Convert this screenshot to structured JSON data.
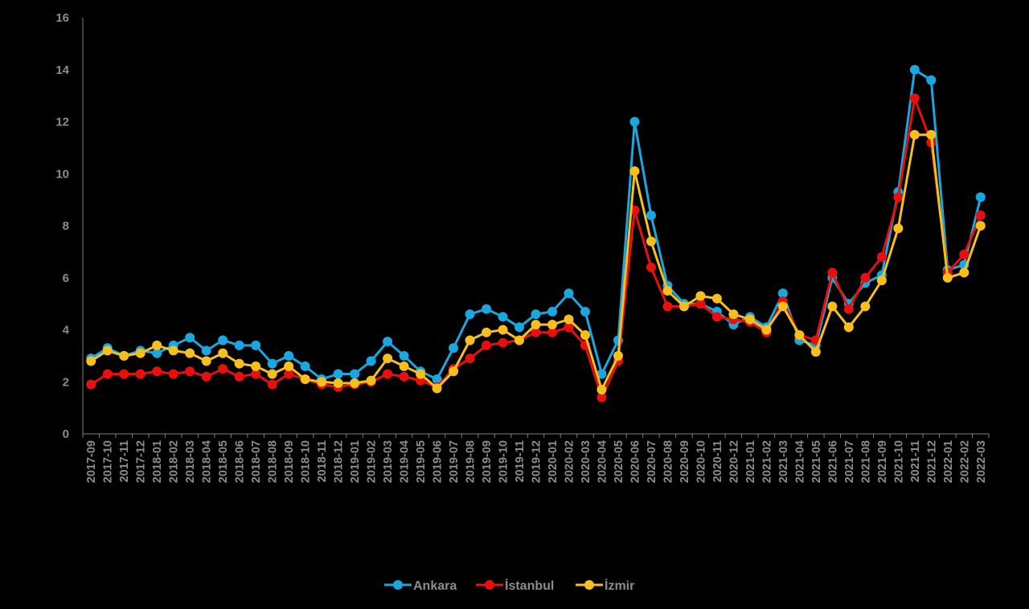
{
  "chart_data": {
    "type": "line",
    "title": "",
    "xlabel": "",
    "ylabel": "",
    "ylim": [
      0,
      16
    ],
    "yticks": [
      0,
      2,
      4,
      6,
      8,
      10,
      12,
      14,
      16
    ],
    "grid": false,
    "legend_position": "bottom-center",
    "x": [
      "2017-09",
      "2017-10",
      "2017-11",
      "2017-12",
      "2018-01",
      "2018-02",
      "2018-03",
      "2018-04",
      "2018-05",
      "2018-06",
      "2018-07",
      "2018-08",
      "2018-09",
      "2018-10",
      "2018-11",
      "2018-12",
      "2019-01",
      "2019-02",
      "2019-03",
      "2019-04",
      "2019-05",
      "2019-06",
      "2019-07",
      "2019-08",
      "2019-09",
      "2019-10",
      "2019-11",
      "2019-12",
      "2020-01",
      "2020-02",
      "2020-03",
      "2020-04",
      "2020-05",
      "2020-06",
      "2020-07",
      "2020-08",
      "2020-09",
      "2020-10",
      "2020-11",
      "2020-12",
      "2021-01",
      "2021-02",
      "2021-03",
      "2021-04",
      "2021-05",
      "2021-06",
      "2021-07",
      "2021-08",
      "2021-09",
      "2021-10",
      "2021-11",
      "2021-12",
      "2022-01",
      "2022-02",
      "2022-03"
    ],
    "x_tick_labels": [
      "2017-09",
      "2017-10",
      "2017-11",
      "2017-12",
      "2018-01",
      "2018-02",
      "2018-03",
      "2018-04",
      "2018-05",
      "2018-06",
      "2018-07",
      "2018-08",
      "2018-09",
      "2018-10",
      "2018-11",
      "2018-12",
      "2019-01",
      "2019-02",
      "2019-03",
      "2019-04",
      "2019-05",
      "2019-06",
      "2019-07",
      "2019-08",
      "2019-09",
      "2019-10",
      "2019-11",
      "2019-12",
      "2020-01",
      "2020-02",
      "2020-03",
      "2020-04",
      "2020-05",
      "2020-06",
      "2020-07",
      "2020-08",
      "2020-09",
      "2020-10",
      "2020-11",
      "2020-12",
      "2021-01",
      "2021-02",
      "2021-03",
      "2021-04",
      "2021-05",
      "2021-06",
      "2021-07",
      "2021-08",
      "2021-09",
      "2021-10",
      "2021-11",
      "2021-12",
      "2022-01",
      "2022-02",
      "2022-03"
    ],
    "series": [
      {
        "name": "Ankara",
        "color": "#1aa7e0",
        "values": [
          2.9,
          3.3,
          3.0,
          3.2,
          3.1,
          3.4,
          3.7,
          3.2,
          3.6,
          3.4,
          3.4,
          2.7,
          3.0,
          2.6,
          2.1,
          2.3,
          2.3,
          2.8,
          3.55,
          3.0,
          2.4,
          2.1,
          3.3,
          4.6,
          4.8,
          4.5,
          4.1,
          4.6,
          4.7,
          5.4,
          4.7,
          2.3,
          3.6,
          12.0,
          8.4,
          5.7,
          5.0,
          5.0,
          4.7,
          4.2,
          4.5,
          4.1,
          5.4,
          3.6,
          3.4,
          6.0,
          5.0,
          5.8,
          6.1,
          9.3,
          14.0,
          13.6,
          6.3,
          6.5,
          9.1
        ]
      },
      {
        "name": "İstanbul",
        "color": "#e8100e",
        "values": [
          1.9,
          2.3,
          2.3,
          2.3,
          2.4,
          2.3,
          2.4,
          2.2,
          2.5,
          2.2,
          2.3,
          1.9,
          2.3,
          2.1,
          1.9,
          1.8,
          1.9,
          2.0,
          2.3,
          2.2,
          2.05,
          1.8,
          2.5,
          2.9,
          3.4,
          3.5,
          3.6,
          3.9,
          3.9,
          4.1,
          3.4,
          1.4,
          2.8,
          8.6,
          6.4,
          4.9,
          4.9,
          5.0,
          4.5,
          4.4,
          4.3,
          3.9,
          5.1,
          3.8,
          3.6,
          6.2,
          4.8,
          6.0,
          6.8,
          9.1,
          12.9,
          11.2,
          6.2,
          6.9,
          8.4
        ]
      },
      {
        "name": "İzmir",
        "color": "#f7bf1e",
        "values": [
          2.8,
          3.2,
          3.0,
          3.1,
          3.4,
          3.2,
          3.1,
          2.8,
          3.1,
          2.7,
          2.6,
          2.3,
          2.6,
          2.1,
          2.0,
          1.95,
          1.95,
          2.05,
          2.9,
          2.6,
          2.3,
          1.75,
          2.4,
          3.6,
          3.9,
          4.0,
          3.6,
          4.2,
          4.2,
          4.4,
          3.8,
          1.7,
          3.0,
          10.1,
          7.4,
          5.5,
          4.9,
          5.3,
          5.2,
          4.6,
          4.4,
          4.0,
          4.9,
          3.8,
          3.15,
          4.9,
          4.1,
          4.9,
          5.9,
          7.9,
          11.5,
          11.5,
          6.0,
          6.2,
          8.0
        ]
      }
    ]
  }
}
